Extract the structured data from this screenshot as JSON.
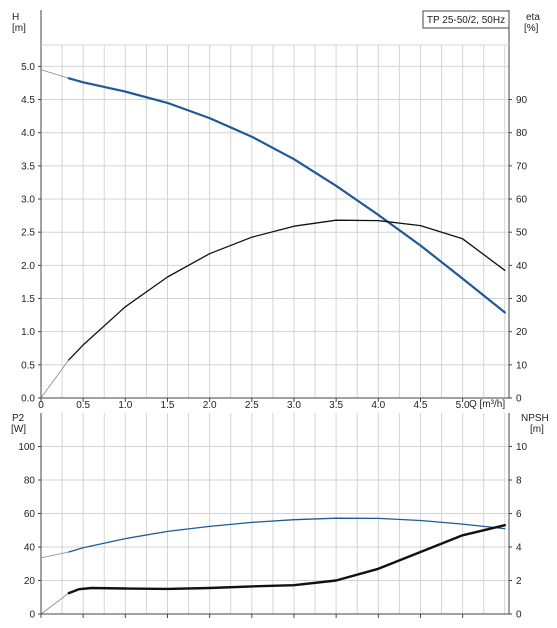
{
  "model_label": "TP 25-50/2, 50Hz",
  "colors": {
    "grid": "#d4d4d4",
    "axis": "#444444",
    "head": "#1f5a96",
    "efficiency": "#111111",
    "power": "#1f5a96",
    "npsh": "#111111",
    "extension": "#888888"
  },
  "chart_data": [
    {
      "type": "line",
      "panel": "top",
      "x_axis": {
        "label": "Q [m³/h]",
        "range": [
          0,
          5.55
        ],
        "ticks": [
          0,
          0.5,
          1.0,
          1.5,
          2.0,
          2.5,
          3.0,
          3.5,
          4.0,
          4.5,
          5.0
        ],
        "tick_labels": [
          "0",
          "0.5",
          "1.0",
          "1.5",
          "2.0",
          "2.5",
          "3.0",
          "3.5",
          "4.0",
          "4.5",
          "5.0"
        ]
      },
      "y_left": {
        "label_line1": "H",
        "label_line2": "[m]",
        "range": [
          0,
          5.85
        ],
        "ticks": [
          0,
          0.5,
          1.0,
          1.5,
          2.0,
          2.5,
          3.0,
          3.5,
          4.0,
          4.5,
          5.0
        ],
        "tick_labels": [
          "0.0",
          "0.5",
          "1.0",
          "1.5",
          "2.0",
          "2.5",
          "3.0",
          "3.5",
          "4.0",
          "4.5",
          "5.0"
        ]
      },
      "y_right": {
        "label_line1": "eta",
        "label_line2": "[%]",
        "range": [
          0,
          117
        ],
        "ticks": [
          0,
          10,
          20,
          30,
          40,
          50,
          60,
          70,
          80,
          90
        ],
        "tick_labels": [
          "0",
          "10",
          "20",
          "30",
          "40",
          "50",
          "60",
          "70",
          "80",
          "90"
        ]
      },
      "grid": true,
      "series": [
        {
          "key": "head",
          "axis": "left",
          "x": [
            0.33,
            0.5,
            1.0,
            1.5,
            2.0,
            2.5,
            3.0,
            3.5,
            4.0,
            4.5,
            5.0,
            5.5
          ],
          "y": [
            4.82,
            4.76,
            4.62,
            4.45,
            4.22,
            3.94,
            3.6,
            3.2,
            2.76,
            2.3,
            1.8,
            1.29
          ],
          "extension": {
            "x": [
              0,
              0.33
            ],
            "y": [
              4.95,
              4.82
            ]
          }
        },
        {
          "key": "efficiency",
          "axis": "right",
          "x": [
            0.33,
            0.5,
            1.0,
            1.5,
            2.0,
            2.5,
            3.0,
            3.5,
            4.0,
            4.5,
            5.0,
            5.5
          ],
          "y": [
            11.5,
            16,
            27.5,
            36.5,
            43.5,
            48.5,
            51.8,
            53.6,
            53.5,
            52,
            48,
            38.5
          ],
          "extension": {
            "x": [
              0,
              0.33
            ],
            "y": [
              0,
              11.5
            ]
          }
        }
      ]
    },
    {
      "type": "line",
      "panel": "bottom",
      "x_axis": {
        "label": "",
        "range": [
          0,
          5.55
        ],
        "ticks": [
          0,
          0.5,
          1.0,
          1.5,
          2.0,
          2.5,
          3.0,
          3.5,
          4.0,
          4.5,
          5.0
        ],
        "tick_labels": []
      },
      "y_left": {
        "label_line1": "P2",
        "label_line2": "[W]",
        "range": [
          0,
          120
        ],
        "ticks": [
          0,
          20,
          40,
          60,
          80,
          100
        ],
        "tick_labels": [
          "0",
          "20",
          "40",
          "60",
          "80",
          "100"
        ]
      },
      "y_right": {
        "label_line1": "NPSH",
        "label_line2": "[m]",
        "range": [
          0,
          12
        ],
        "ticks": [
          0,
          2,
          4,
          6,
          8,
          10
        ],
        "tick_labels": [
          "0",
          "2",
          "4",
          "6",
          "8",
          "10"
        ]
      },
      "grid": true,
      "series": [
        {
          "key": "power",
          "axis": "left",
          "x": [
            0.33,
            0.5,
            1.0,
            1.5,
            2.0,
            2.5,
            3.0,
            3.5,
            4.0,
            4.5,
            5.0,
            5.5
          ],
          "y": [
            37,
            39.5,
            45,
            49.3,
            52.3,
            54.7,
            56.3,
            57.2,
            57.1,
            55.8,
            53.7,
            51
          ],
          "extension": {
            "x": [
              0,
              0.33
            ],
            "y": [
              33.5,
              37
            ]
          }
        },
        {
          "key": "npsh",
          "axis": "right",
          "x": [
            0.33,
            0.45,
            0.6,
            1.0,
            1.5,
            2.0,
            2.5,
            3.0,
            3.5,
            4.0,
            4.5,
            5.0,
            5.5
          ],
          "y": [
            1.25,
            1.48,
            1.55,
            1.52,
            1.5,
            1.55,
            1.65,
            1.72,
            2.0,
            2.7,
            3.7,
            4.7,
            5.3
          ],
          "extension": {
            "x": [
              0,
              0.33
            ],
            "y": [
              0,
              1.25
            ]
          }
        }
      ]
    }
  ]
}
